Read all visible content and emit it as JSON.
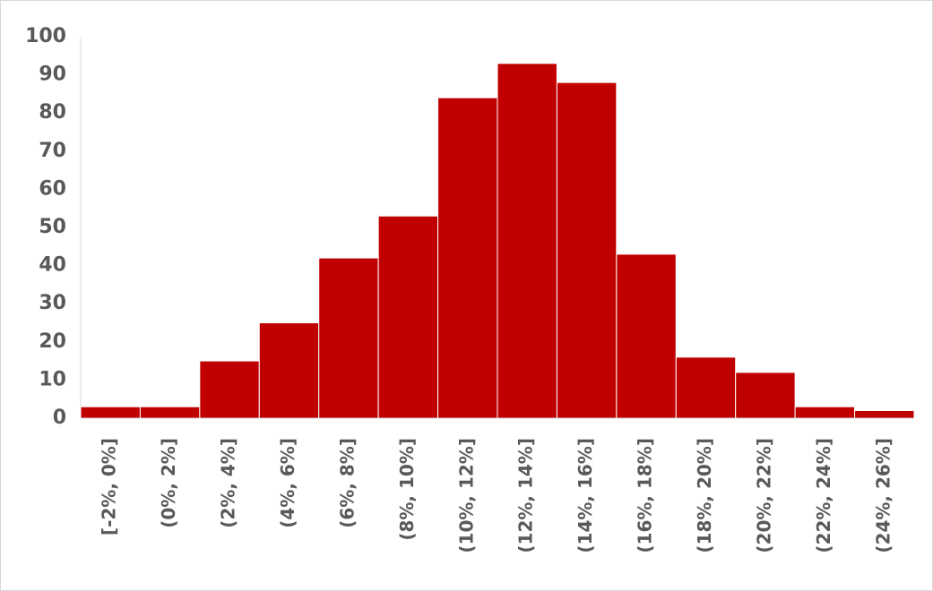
{
  "chart_data": {
    "type": "bar",
    "categories": [
      "[-2%, 0%]",
      "(0%, 2%]",
      "(2%, 4%]",
      "(4%, 6%]",
      "(6%, 8%]",
      "(8%, 10%]",
      "(10%, 12%]",
      "(12%, 14%]",
      "(14%, 16%]",
      "(16%, 18%]",
      "(18%, 20%]",
      "(20%, 22%]",
      "(22%, 24%]",
      "(24%, 26%]"
    ],
    "values": [
      3,
      3,
      15,
      25,
      42,
      53,
      84,
      93,
      88,
      43,
      16,
      12,
      3,
      2
    ],
    "color": "#c00000",
    "ylim": [
      0,
      100
    ],
    "yticks": [
      0,
      10,
      20,
      30,
      40,
      50,
      60,
      70,
      80,
      90,
      100
    ],
    "grid": false
  }
}
